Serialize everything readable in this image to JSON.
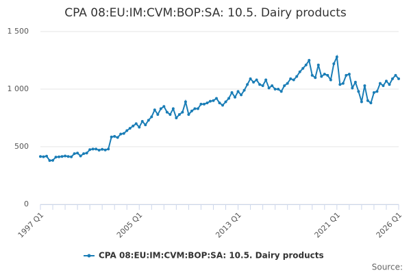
{
  "chart_data": {
    "type": "line",
    "title": "CPA 08:EU:IM:CVM:BOP:SA: 10.5. Dairy products",
    "source": "Source:",
    "categories": [
      "1997 Q1",
      null,
      null,
      null,
      null,
      null,
      null,
      null,
      null,
      null,
      null,
      null,
      null,
      null,
      null,
      null,
      null,
      null,
      null,
      null,
      null,
      null,
      null,
      null,
      null,
      null,
      null,
      null,
      null,
      null,
      null,
      null,
      "2005 Q1",
      null,
      null,
      null,
      null,
      null,
      null,
      null,
      null,
      null,
      null,
      null,
      null,
      null,
      null,
      null,
      null,
      null,
      null,
      null,
      null,
      null,
      null,
      null,
      null,
      null,
      null,
      null,
      null,
      null,
      null,
      null,
      "2013 Q1",
      null,
      null,
      null,
      null,
      null,
      null,
      null,
      null,
      null,
      null,
      null,
      null,
      null,
      null,
      null,
      null,
      null,
      null,
      null,
      null,
      null,
      null,
      null,
      null,
      null,
      null,
      null,
      null,
      null,
      null,
      null,
      "2021 Q1",
      null,
      null,
      null,
      null,
      null,
      null,
      null,
      null,
      null,
      null,
      null,
      null,
      null,
      null,
      null,
      null,
      null,
      null,
      null,
      "2026 Q1"
    ],
    "series": [
      {
        "name": "CPA 08:EU:IM:CVM:BOP:SA: 10.5. Dairy products",
        "color": "#1a7db6",
        "values": [
          415,
          413,
          418,
          380,
          382,
          410,
          412,
          415,
          420,
          415,
          412,
          440,
          445,
          420,
          440,
          445,
          475,
          480,
          480,
          470,
          478,
          472,
          480,
          585,
          590,
          580,
          610,
          615,
          640,
          660,
          680,
          700,
          670,
          720,
          690,
          730,
          760,
          820,
          780,
          830,
          850,
          800,
          780,
          830,
          750,
          780,
          800,
          890,
          780,
          810,
          830,
          830,
          870,
          870,
          880,
          895,
          900,
          920,
          880,
          860,
          890,
          920,
          970,
          930,
          980,
          950,
          990,
          1040,
          1090,
          1060,
          1080,
          1040,
          1030,
          1080,
          1010,
          1030,
          1000,
          1000,
          980,
          1030,
          1050,
          1090,
          1080,
          1110,
          1150,
          1180,
          1210,
          1250,
          1120,
          1100,
          1210,
          1110,
          1130,
          1120,
          1080,
          1220,
          1280,
          1040,
          1050,
          1120,
          1130,
          1010,
          1060,
          980,
          890,
          1030,
          900,
          880,
          970,
          980,
          1050,
          1030,
          1070,
          1040,
          1090,
          1120,
          1090
        ]
      }
    ],
    "ylim": [
      0,
      1500
    ],
    "yticks": [
      0,
      500,
      {
        "value": 1000,
        "label": "1 000"
      },
      {
        "value": 1500,
        "label": "1 500"
      }
    ],
    "grid": true
  }
}
